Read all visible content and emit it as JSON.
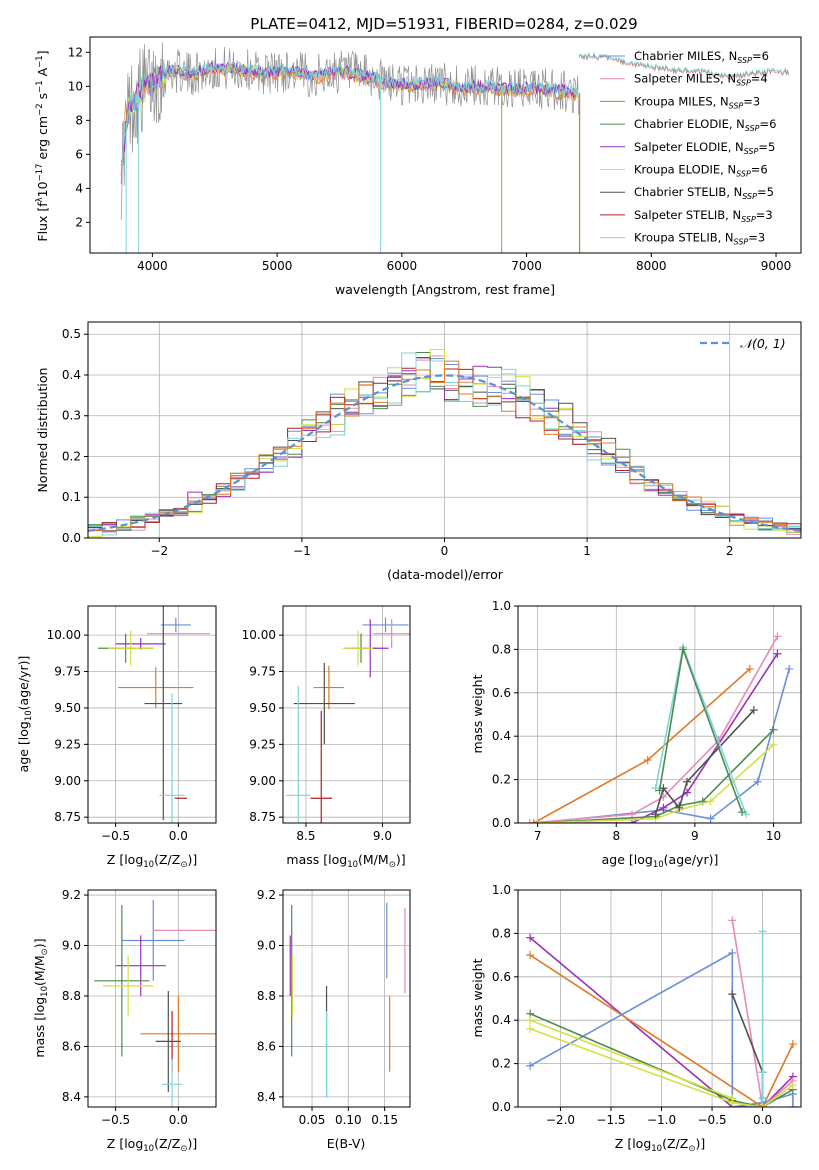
{
  "title": "PLATE=0412, MJD=51931, FIBERID=0284, z=0.029",
  "colors": {
    "Chabrier MILES": "#6a8fd8",
    "Salpeter MILES": "#e98ab8",
    "Kroupa MILES": "#b8860b",
    "Chabrier ELODIE": "#4e8a4e",
    "Salpeter ELODIE": "#9b30b8",
    "Kroupa ELODIE": "#d4e040",
    "Chabrier STELIB": "#505050",
    "Salpeter STELIB": "#b02020",
    "Kroupa STELIB": "#7fd6d6",
    "orange": "#e07a28",
    "gray": "#909090"
  },
  "chart_data": [
    {
      "id": "spectrum",
      "type": "line",
      "xlabel": "wavelength [Angstrom, rest frame]",
      "ylabel_parts": [
        "Flux [f",
        "λ",
        "10",
        "−17",
        " erg cm",
        "−2",
        " s",
        "−1",
        " A",
        "−1",
        "]"
      ],
      "xlim": [
        3500,
        9200
      ],
      "ylim": [
        0.2,
        12.9
      ],
      "xticks": [
        4000,
        5000,
        6000,
        7000,
        8000,
        9000
      ],
      "yticks": [
        2,
        4,
        6,
        8,
        10,
        12
      ],
      "legend": [
        {
          "label": "Chabrier MILES, N",
          "sub": "SSP",
          "eq": "=6",
          "key": "Chabrier MILES"
        },
        {
          "label": "Salpeter MILES, N",
          "sub": "SSP",
          "eq": "=4",
          "key": "Salpeter MILES"
        },
        {
          "label": "Kroupa MILES, N",
          "sub": "SSP",
          "eq": "=3",
          "key": "Kroupa MILES"
        },
        {
          "label": "Chabrier ELODIE, N",
          "sub": "SSP",
          "eq": "=6",
          "key": "Chabrier ELODIE"
        },
        {
          "label": "Salpeter ELODIE, N",
          "sub": "SSP",
          "eq": "=5",
          "key": "Salpeter ELODIE"
        },
        {
          "label": "Kroupa ELODIE, N",
          "sub": "SSP",
          "eq": "=6",
          "key": "Kroupa ELODIE"
        },
        {
          "label": "Chabrier STELIB, N",
          "sub": "SSP",
          "eq": "=5",
          "key": "Chabrier STELIB"
        },
        {
          "label": "Salpeter STELIB, N",
          "sub": "SSP",
          "eq": "=3",
          "key": "Salpeter STELIB"
        },
        {
          "label": "Kroupa STELIB, N",
          "sub": "SSP",
          "eq": "=3",
          "key": "Kroupa STELIB"
        }
      ],
      "legend_position": "right",
      "continuum": {
        "x": [
          3750,
          3800,
          3900,
          4000,
          4100,
          4200,
          4300,
          4500,
          4700,
          4900,
          5100,
          5300,
          5500,
          5700,
          5900,
          6100,
          6300,
          6500,
          6700,
          6900,
          7100,
          7300,
          7420
        ],
        "y": [
          5.0,
          8.5,
          9.6,
          10.3,
          10.8,
          10.9,
          10.7,
          11.1,
          11.0,
          10.8,
          10.9,
          10.6,
          10.9,
          10.6,
          10.2,
          10.1,
          10.2,
          9.9,
          10.0,
          9.8,
          9.9,
          9.7,
          9.6
        ]
      },
      "model_continuum": {
        "x": [
          7420,
          7600,
          7800,
          8000,
          8200,
          8400,
          8600,
          8800,
          9000,
          9100
        ],
        "y": [
          11.8,
          11.8,
          11.4,
          11.2,
          11.0,
          10.9,
          10.6,
          10.8,
          10.9,
          10.9
        ]
      },
      "spikes": [
        {
          "x": 3790,
          "y": 0.2
        },
        {
          "x": 3890,
          "y": 0.2
        },
        {
          "x": 5830,
          "y": 0.2
        },
        {
          "x": 6800,
          "y": 0.2
        },
        {
          "x": 7425,
          "y": 0.2
        }
      ]
    },
    {
      "id": "residual_hist",
      "type": "histogram",
      "xlabel": "(data-model)/error",
      "ylabel": "Normed distribution",
      "xlim": [
        -2.5,
        2.5
      ],
      "ylim": [
        0,
        0.53
      ],
      "xticks": [
        -2,
        -1,
        0,
        1,
        2
      ],
      "yticks": [
        0.0,
        0.1,
        0.2,
        0.3,
        0.4,
        0.5
      ],
      "bin_width": 0.1,
      "gaussian_label": "𝒩(0, 1)",
      "legend_position": "top-right"
    },
    {
      "id": "age_vs_Z",
      "type": "scatter",
      "xlabel_parts": [
        "Z [log",
        "10",
        "(Z/Z",
        "⊙",
        ")]"
      ],
      "ylabel_parts": [
        "age  [log",
        "10",
        "(age/yr)]"
      ],
      "xlim": [
        -0.72,
        0.3
      ],
      "ylim": [
        8.71,
        10.2
      ],
      "xticks": [
        -0.5,
        0.0
      ],
      "yticks": [
        8.75,
        9.0,
        9.25,
        9.5,
        9.75,
        10.0
      ],
      "points": [
        {
          "key": "Chabrier MILES",
          "x": -0.02,
          "y": 10.07,
          "xerr": 0.12,
          "yerr": 0.05
        },
        {
          "key": "Salpeter MILES",
          "x": 0.0,
          "y": 10.01,
          "xerr": 0.25,
          "yerr": 0.0
        },
        {
          "key": "Chabrier ELODIE",
          "x": -0.42,
          "y": 9.91,
          "xerr": 0.22,
          "yerr": 0.1
        },
        {
          "key": "Salpeter ELODIE",
          "x": -0.3,
          "y": 9.94,
          "xerr": 0.2,
          "yerr": 0.04
        },
        {
          "key": "Kroupa ELODIE",
          "x": -0.38,
          "y": 9.91,
          "xerr": 0.18,
          "yerr": 0.12
        },
        {
          "key": "orange",
          "x": -0.18,
          "y": 9.64,
          "xerr": 0.3,
          "yerr": 0.14
        },
        {
          "key": "Chabrier STELIB",
          "x": -0.12,
          "y": 9.53,
          "xerr": 0.15,
          "yerr": 0.8
        },
        {
          "key": "Kroupa STELIB",
          "x": -0.05,
          "y": 8.9,
          "xerr": 0.1,
          "yerr": 0.7
        },
        {
          "key": "Salpeter STELIB",
          "x": 0.02,
          "y": 8.88,
          "xerr": 0.05,
          "yerr": 0.0
        }
      ]
    },
    {
      "id": "age_vs_mass",
      "type": "scatter",
      "xlabel_parts": [
        "mass [log",
        "10",
        "(M/M",
        "⊙",
        ")]"
      ],
      "xlim": [
        8.35,
        9.18
      ],
      "ylim": [
        8.71,
        10.2
      ],
      "xticks": [
        8.5,
        9.0
      ],
      "yticks": [
        8.75,
        9.0,
        9.25,
        9.5,
        9.75,
        10.0
      ],
      "points": [
        {
          "key": "Chabrier MILES",
          "x": 9.02,
          "y": 10.07,
          "xerr": 0.15,
          "yerr": 0.05
        },
        {
          "key": "Salpeter MILES",
          "x": 9.06,
          "y": 10.01,
          "xerr": 0.12,
          "yerr": 0.1
        },
        {
          "key": "Chabrier ELODIE",
          "x": 8.86,
          "y": 9.91,
          "xerr": 0.1,
          "yerr": 0.1
        },
        {
          "key": "Salpeter ELODIE",
          "x": 8.92,
          "y": 9.91,
          "xerr": 0.12,
          "yerr": 0.2
        },
        {
          "key": "Kroupa ELODIE",
          "x": 8.84,
          "y": 9.91,
          "xerr": 0.1,
          "yerr": 0.12
        },
        {
          "key": "orange",
          "x": 8.65,
          "y": 9.64,
          "xerr": 0.1,
          "yerr": 0.15
        },
        {
          "key": "Chabrier STELIB",
          "x": 8.62,
          "y": 9.53,
          "xerr": 0.2,
          "yerr": 0.28
        },
        {
          "key": "Salpeter STELIB",
          "x": 8.6,
          "y": 8.88,
          "xerr": 0.07,
          "yerr": 0.6
        },
        {
          "key": "Kroupa STELIB",
          "x": 8.45,
          "y": 8.9,
          "xerr": 0.08,
          "yerr": 0.75
        }
      ]
    },
    {
      "id": "mass_weight_vs_age",
      "type": "line",
      "xlabel_parts": [
        "age  [log",
        "10",
        "(age/yr)]"
      ],
      "ylabel": "mass weight",
      "xlim": [
        6.75,
        10.35
      ],
      "ylim": [
        0,
        1.0
      ],
      "xticks": [
        7,
        8,
        9,
        10
      ],
      "yticks": [
        0.0,
        0.2,
        0.4,
        0.6,
        0.8,
        1.0
      ],
      "series": [
        {
          "key": "Chabrier MILES",
          "x": [
            7.0,
            8.6,
            9.2,
            9.8,
            10.2
          ],
          "y": [
            0.0,
            0.06,
            0.02,
            0.19,
            0.71
          ]
        },
        {
          "key": "Salpeter MILES",
          "x": [
            6.9,
            8.2,
            8.6,
            9.3,
            10.05
          ],
          "y": [
            0.0,
            0.04,
            0.12,
            0.38,
            0.86
          ]
        },
        {
          "key": "orange",
          "x": [
            6.95,
            8.4,
            9.7
          ],
          "y": [
            0.0,
            0.29,
            0.71
          ]
        },
        {
          "key": "Salpeter ELODIE",
          "x": [
            7.0,
            8.2,
            8.6,
            8.9,
            10.05
          ],
          "y": [
            0.0,
            0.0,
            0.07,
            0.14,
            0.78
          ]
        },
        {
          "key": "Chabrier ELODIE",
          "x": [
            7.0,
            8.5,
            8.8,
            9.1,
            10.0
          ],
          "y": [
            0.0,
            0.03,
            0.08,
            0.1,
            0.43
          ]
        },
        {
          "key": "Kroupa ELODIE",
          "x": [
            7.0,
            8.5,
            8.8,
            9.2,
            10.0
          ],
          "y": [
            0.0,
            0.02,
            0.06,
            0.1,
            0.36
          ]
        },
        {
          "key": "Chabrier STELIB",
          "x": [
            8.5,
            8.6,
            8.8,
            8.9,
            9.75
          ],
          "y": [
            0.04,
            0.16,
            0.07,
            0.19,
            0.52
          ]
        },
        {
          "key": "Kroupa STELIB",
          "x": [
            8.5,
            8.85,
            9.65
          ],
          "y": [
            0.16,
            0.81,
            0.04
          ]
        },
        {
          "key": "Chabrier ELODIE",
          "x": [
            8.55,
            8.85,
            9.6
          ],
          "y": [
            0.15,
            0.8,
            0.05
          ]
        }
      ]
    },
    {
      "id": "mass_vs_Z",
      "type": "scatter",
      "xlabel_parts": [
        "Z [log",
        "10",
        "(Z/Z",
        "⊙",
        ")]"
      ],
      "ylabel_parts": [
        "mass [log",
        "10",
        "(M/M",
        "⊙",
        ")]"
      ],
      "xlim": [
        -0.72,
        0.3
      ],
      "ylim": [
        8.36,
        9.22
      ],
      "xticks": [
        -0.5,
        0.0
      ],
      "yticks": [
        8.4,
        8.6,
        8.8,
        9.0,
        9.2
      ],
      "points": [
        {
          "key": "Chabrier MILES",
          "x": -0.2,
          "y": 9.02,
          "xerr": 0.25,
          "yerr": 0.16
        },
        {
          "key": "Salpeter MILES",
          "x": 0.05,
          "y": 9.06,
          "xerr": 0.25,
          "yerr": 0.0
        },
        {
          "key": "Salpeter ELODIE",
          "x": -0.3,
          "y": 8.92,
          "xerr": 0.2,
          "yerr": 0.12
        },
        {
          "key": "Chabrier ELODIE",
          "x": -0.45,
          "y": 8.86,
          "xerr": 0.22,
          "yerr": 0.3
        },
        {
          "key": "Kroupa ELODIE",
          "x": -0.4,
          "y": 8.84,
          "xerr": 0.2,
          "yerr": 0.12
        },
        {
          "key": "orange",
          "x": 0.0,
          "y": 8.65,
          "xerr": 0.3,
          "yerr": 0.15
        },
        {
          "key": "Chabrier STELIB",
          "x": -0.08,
          "y": 8.62,
          "xerr": 0.1,
          "yerr": 0.2
        },
        {
          "key": "Salpeter STELIB",
          "x": -0.05,
          "y": 8.62,
          "xerr": 0.0,
          "yerr": 0.12
        },
        {
          "key": "Kroupa STELIB",
          "x": -0.05,
          "y": 8.45,
          "xerr": 0.08,
          "yerr": 0.1
        }
      ]
    },
    {
      "id": "mass_vs_EBV",
      "type": "scatter",
      "xlabel": "E(B-V)",
      "xlim": [
        0.01,
        0.185
      ],
      "ylim": [
        8.36,
        9.22
      ],
      "xticks": [
        0.05,
        0.1,
        0.15
      ],
      "yticks": [
        8.4,
        8.6,
        8.8,
        9.0,
        9.2
      ],
      "points": [
        {
          "key": "Salpeter ELODIE",
          "x": 0.02,
          "y": 8.92,
          "xerr": 0.0,
          "yerr": 0.12
        },
        {
          "key": "Chabrier ELODIE",
          "x": 0.022,
          "y": 8.86,
          "xerr": 0.0,
          "yerr": 0.3
        },
        {
          "key": "Kroupa ELODIE",
          "x": 0.023,
          "y": 8.84,
          "xerr": 0.0,
          "yerr": 0.12
        },
        {
          "key": "Chabrier STELIB",
          "x": 0.07,
          "y": 8.62,
          "xerr": 0.0,
          "yerr": 0.22
        },
        {
          "key": "Kroupa STELIB",
          "x": 0.07,
          "y": 8.57,
          "xerr": 0.0,
          "yerr": 0.17
        },
        {
          "key": "Chabrier MILES",
          "x": 0.153,
          "y": 9.02,
          "xerr": 0.0,
          "yerr": 0.15
        },
        {
          "key": "orange",
          "x": 0.157,
          "y": 8.65,
          "xerr": 0.0,
          "yerr": 0.15
        },
        {
          "key": "Salpeter MILES",
          "x": 0.178,
          "y": 8.98,
          "xerr": 0.0,
          "yerr": 0.17
        }
      ]
    },
    {
      "id": "mass_weight_vs_Z",
      "type": "line",
      "xlabel_parts": [
        "Z [log",
        "10",
        "(Z/Z",
        "⊙",
        ")]"
      ],
      "ylabel": "mass weight",
      "xlim": [
        -2.42,
        0.38
      ],
      "ylim": [
        0,
        1.0
      ],
      "xticks": [
        -2.0,
        -1.5,
        -1.0,
        -0.5,
        0.0
      ],
      "yticks": [
        0.0,
        0.2,
        0.4,
        0.6,
        0.8,
        1.0
      ],
      "series": [
        {
          "key": "Salpeter ELODIE",
          "x": [
            -2.3,
            -0.3,
            0.0,
            0.3
          ],
          "y": [
            0.78,
            0.0,
            0.0,
            0.14
          ]
        },
        {
          "key": "orange",
          "x": [
            -2.3,
            0.0,
            0.3
          ],
          "y": [
            0.7,
            0.0,
            0.29
          ]
        },
        {
          "key": "Chabrier MILES",
          "x": [
            -2.3,
            -0.3,
            -0.3,
            0.0,
            0.3,
            0.3
          ],
          "y": [
            0.19,
            0.71,
            0.0,
            0.02,
            0.06,
            0.0
          ]
        },
        {
          "key": "Salpeter MILES",
          "x": [
            -0.3,
            0.0,
            0.3
          ],
          "y": [
            0.86,
            0.0,
            0.12
          ]
        },
        {
          "key": "Chabrier ELODIE",
          "x": [
            -2.3,
            -0.3,
            0.0,
            0.3
          ],
          "y": [
            0.43,
            0.03,
            0.0,
            0.08
          ]
        },
        {
          "key": "Kroupa ELODIE",
          "x": [
            -2.3,
            -0.3,
            0.0,
            0.3
          ],
          "y": [
            0.36,
            0.02,
            0.0,
            0.1
          ]
        },
        {
          "key": "Chabrier STELIB",
          "x": [
            -0.3,
            0.0,
            0.0
          ],
          "y": [
            0.52,
            0.16,
            0.04
          ]
        },
        {
          "key": "Kroupa STELIB",
          "x": [
            0.0,
            0.0,
            0.0
          ],
          "y": [
            0.81,
            0.04,
            0.16
          ]
        },
        {
          "key": "Kroupa ELODIE",
          "x": [
            -2.3,
            -0.3
          ],
          "y": [
            0.4,
            0.04
          ]
        }
      ]
    }
  ]
}
